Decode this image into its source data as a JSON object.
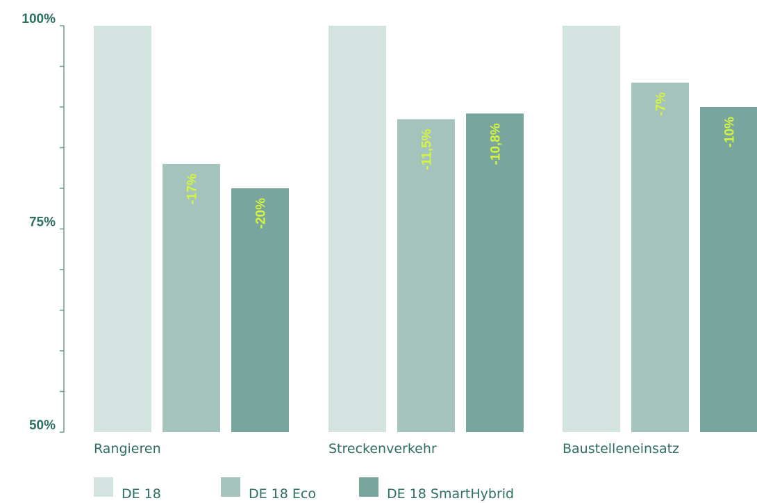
{
  "chart_data": {
    "type": "bar",
    "categories": [
      "Rangieren",
      "Streckenverkehr",
      "Baustelleneinsatz"
    ],
    "series": [
      {
        "name": "DE 18",
        "values": [
          100,
          100,
          100
        ],
        "labels": [
          "",
          "",
          ""
        ]
      },
      {
        "name": "DE 18 Eco",
        "values": [
          83,
          88.5,
          93
        ],
        "labels": [
          "-17%",
          "-11,5%",
          "-7%"
        ]
      },
      {
        "name": "DE 18 SmartHybrid",
        "values": [
          80,
          89.2,
          90
        ],
        "labels": [
          "-20%",
          "-10,8%",
          "-10%"
        ]
      }
    ],
    "ylim": [
      50,
      100
    ],
    "yticks": [
      {
        "value": 100,
        "label": "100%"
      },
      {
        "value": 75,
        "label": "75%"
      },
      {
        "value": 50,
        "label": "50%"
      }
    ],
    "minor_tick_step": 5,
    "grid": false,
    "legend_position": "bottom-left"
  },
  "colors": {
    "series": [
      "#d3e3df",
      "#a4c3bd",
      "#78a59d"
    ],
    "axis": "#6f9b93",
    "tick_text": "#2e6f63",
    "category_text": "#2e6f63",
    "data_label": "#d4f53c"
  }
}
